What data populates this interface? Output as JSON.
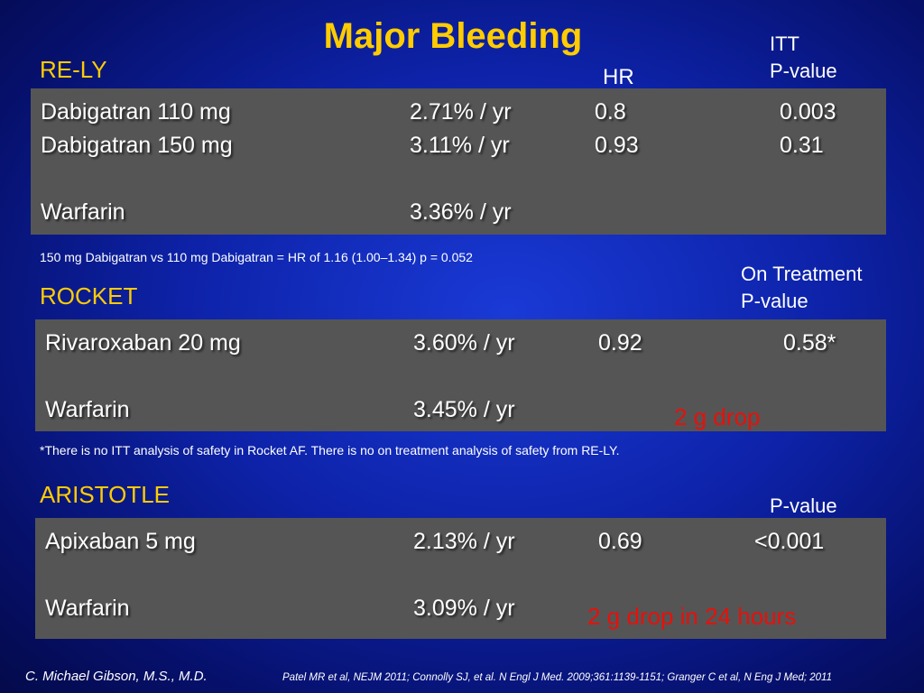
{
  "title": "Major Bleeding",
  "relY": {
    "section": "RE-LY",
    "hr_header": "HR",
    "p_header_line1": "ITT",
    "p_header_line2": "P-value",
    "rows": [
      {
        "drug": "Dabigatran 110 mg",
        "rate": "2.71% / yr",
        "hr": "0.8",
        "p": "0.003"
      },
      {
        "drug": "Dabigatran 150 mg",
        "rate": "3.11% / yr",
        "hr": "0.93",
        "p": "0.31"
      },
      {
        "drug": "Warfarin",
        "rate": "3.36% / yr",
        "hr": "",
        "p": ""
      }
    ],
    "note": "150 mg Dabigatran vs 110 mg Dabigatran = HR of 1.16 (1.00–1.34) p = 0.052"
  },
  "rocket": {
    "section": "ROCKET",
    "p_header_line1": "On Treatment",
    "p_header_line2": "P-value",
    "rows": [
      {
        "drug": "Rivaroxaban 20 mg",
        "rate": "3.60% / yr",
        "hr": "0.92",
        "p": "0.58*"
      },
      {
        "drug": "Warfarin",
        "rate": "3.45% / yr",
        "hr": "",
        "p": ""
      }
    ],
    "callout": "2 g drop",
    "note": "*There is no ITT analysis of safety in Rocket AF. There is no on treatment analysis of safety from RE-LY."
  },
  "aristotle": {
    "section": "ARISTOTLE",
    "p_header": "P-value",
    "rows": [
      {
        "drug": "Apixaban 5 mg",
        "rate": "2.13% / yr",
        "hr": "0.69",
        "p": "<0.001"
      },
      {
        "drug": "Warfarin",
        "rate": "3.09% / yr",
        "hr": "",
        "p": ""
      }
    ],
    "callout": "2 g drop in 24 hours"
  },
  "footer": {
    "author": "C. Michael Gibson, M.S., M.D.",
    "references": "Patel MR  et al, NEJM 2011; Connolly SJ, et al. N Engl J Med. 2009;361:1139-1151; Granger C et al, N Eng J Med; 2011"
  },
  "colors": {
    "title": "#ffcc00",
    "section": "#ffcc00",
    "panel": "#555555",
    "callout": "#e8100a",
    "background": "#0d22a8"
  }
}
